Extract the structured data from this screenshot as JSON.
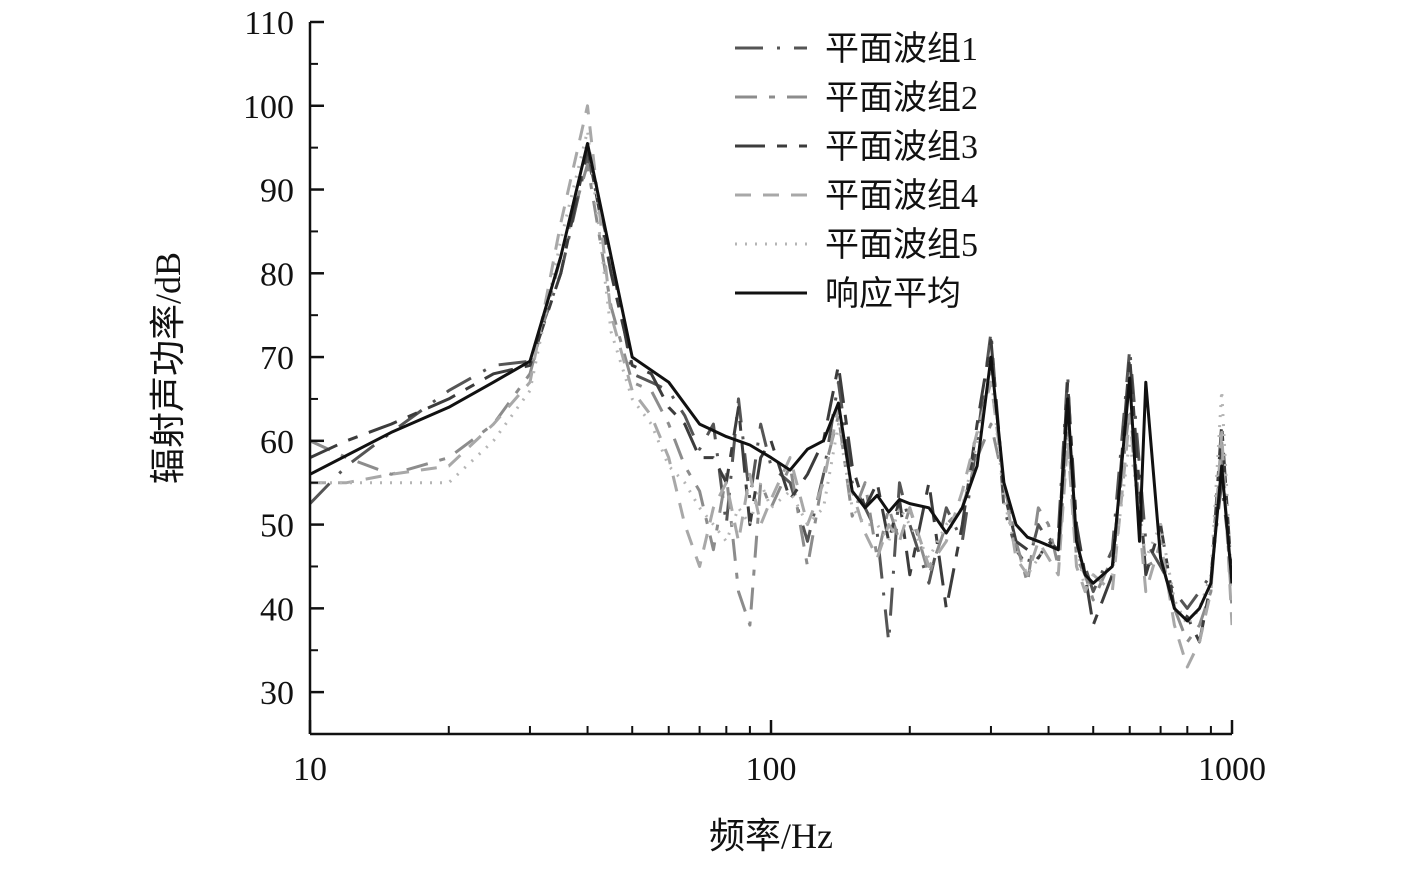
{
  "chart_data": {
    "type": "line",
    "x_scale": "log",
    "xlabel": "频率/Hz",
    "ylabel": "辐射声功率/dB",
    "xlim": [
      10,
      1000
    ],
    "ylim": [
      25,
      110
    ],
    "x_ticks": [
      "10",
      "100",
      "1000"
    ],
    "y_ticks": [
      "30",
      "40",
      "50",
      "60",
      "70",
      "80",
      "90",
      "100",
      "110"
    ],
    "grid": false,
    "legend_position": "top-right",
    "series": [
      {
        "name": "平面波组1",
        "color": "#555555",
        "dash": "longdash-dot",
        "x": [
          10,
          12,
          15,
          20,
          25,
          30,
          35,
          40,
          45,
          50,
          55,
          60,
          65,
          70,
          75,
          80,
          85,
          90,
          95,
          100,
          110,
          120,
          130,
          140,
          150,
          160,
          170,
          180,
          190,
          200,
          220,
          240,
          260,
          280,
          300,
          320,
          340,
          360,
          380,
          400,
          420,
          440,
          460,
          480,
          500,
          550,
          600,
          650,
          700,
          750,
          800,
          850,
          900,
          950,
          1000
        ],
        "y": [
          52.5,
          57,
          61,
          66,
          69,
          69.5,
          80,
          94,
          82,
          68,
          67,
          66,
          63,
          59,
          62,
          50,
          65,
          53,
          62,
          57,
          55,
          48,
          56,
          67,
          55,
          52,
          49,
          36,
          55,
          50,
          43,
          52,
          48,
          60,
          73,
          52,
          47,
          45,
          50,
          48,
          49,
          68,
          47,
          45,
          42,
          47,
          71,
          48,
          45,
          42,
          40,
          42,
          44,
          55,
          44
        ]
      },
      {
        "name": "平面波组2",
        "color": "#8c8c8c",
        "dash": "dash-dot",
        "x": [
          10,
          12,
          15,
          20,
          25,
          30,
          35,
          40,
          45,
          50,
          55,
          60,
          65,
          70,
          75,
          80,
          85,
          90,
          95,
          100,
          110,
          120,
          130,
          140,
          150,
          160,
          170,
          180,
          190,
          200,
          220,
          240,
          260,
          280,
          300,
          320,
          340,
          360,
          380,
          400,
          420,
          440,
          460,
          480,
          500,
          550,
          600,
          650,
          700,
          750,
          800,
          850,
          900,
          950,
          1000
        ],
        "y": [
          60,
          58,
          56,
          58,
          62,
          68,
          82,
          93,
          76,
          67,
          66,
          62,
          57,
          54,
          47,
          56,
          42,
          38,
          55,
          52,
          57,
          45,
          56,
          63,
          51,
          55,
          46,
          52,
          48,
          52,
          44,
          50,
          52,
          58,
          62,
          55,
          48,
          43,
          52,
          50,
          45,
          62,
          46,
          44,
          41,
          46,
          64,
          45,
          46,
          40,
          36,
          38,
          42,
          60,
          40
        ]
      },
      {
        "name": "平面波组3",
        "color": "#3c3c3c",
        "dash": "longdash-shortdash",
        "x": [
          10,
          12,
          15,
          20,
          25,
          30,
          35,
          40,
          45,
          50,
          55,
          60,
          65,
          70,
          75,
          80,
          85,
          90,
          95,
          100,
          110,
          120,
          130,
          140,
          150,
          160,
          170,
          180,
          190,
          200,
          220,
          240,
          260,
          280,
          300,
          320,
          340,
          360,
          380,
          400,
          420,
          440,
          460,
          480,
          500,
          550,
          600,
          650,
          700,
          750,
          800,
          850,
          900,
          950,
          1000
        ],
        "y": [
          58,
          60,
          62,
          65,
          68,
          69,
          80,
          95,
          80,
          69,
          68,
          64,
          62,
          58,
          58,
          55,
          64,
          50,
          58,
          60,
          53,
          56,
          60,
          69,
          57,
          52,
          55,
          48,
          53,
          44,
          55,
          40,
          50,
          62,
          72,
          54,
          48,
          47,
          46,
          48,
          47,
          67,
          50,
          44,
          38,
          44,
          70,
          44,
          50,
          40,
          39,
          36,
          43,
          62,
          43
        ]
      },
      {
        "name": "平面波组4",
        "color": "#a8a8a8",
        "dash": "dashed",
        "x": [
          10,
          12,
          15,
          20,
          25,
          30,
          35,
          40,
          45,
          50,
          55,
          60,
          65,
          70,
          75,
          80,
          85,
          90,
          95,
          100,
          110,
          120,
          130,
          140,
          150,
          160,
          170,
          180,
          190,
          200,
          220,
          240,
          260,
          280,
          300,
          320,
          340,
          360,
          380,
          400,
          420,
          440,
          460,
          480,
          500,
          550,
          600,
          650,
          700,
          750,
          800,
          850,
          900,
          950,
          1000
        ],
        "y": [
          55,
          55,
          56,
          57,
          62,
          67,
          86,
          100,
          75,
          66,
          63,
          58,
          50,
          45,
          52,
          55,
          48,
          56,
          50,
          53,
          58,
          50,
          55,
          64,
          54,
          49,
          46,
          50,
          48,
          52,
          45,
          48,
          54,
          61,
          67,
          55,
          46,
          44,
          48,
          46,
          44,
          60,
          45,
          42,
          44,
          42,
          63,
          42,
          48,
          38,
          33,
          36,
          42,
          61,
          38
        ]
      },
      {
        "name": "平面波组5",
        "color": "#b5b5b5",
        "dash": "dotted",
        "x": [
          10,
          12,
          15,
          20,
          25,
          30,
          35,
          40,
          45,
          50,
          55,
          60,
          65,
          70,
          75,
          80,
          85,
          90,
          95,
          100,
          110,
          120,
          130,
          140,
          150,
          160,
          170,
          180,
          190,
          200,
          220,
          240,
          260,
          280,
          300,
          320,
          340,
          360,
          380,
          400,
          420,
          440,
          460,
          480,
          500,
          550,
          600,
          650,
          700,
          750,
          800,
          850,
          900,
          950,
          1000
        ],
        "y": [
          55,
          55,
          55,
          55,
          60,
          66,
          84,
          97,
          73,
          65,
          62,
          57,
          55,
          52,
          50,
          48,
          52,
          50,
          55,
          52,
          54,
          50,
          52,
          62,
          52,
          50,
          50,
          48,
          52,
          50,
          46,
          50,
          52,
          60,
          68,
          53,
          47,
          44,
          46,
          48,
          47,
          62,
          48,
          42,
          44,
          44,
          60,
          46,
          50,
          41,
          38,
          40,
          44,
          66,
          42
        ]
      },
      {
        "name": "响应平均",
        "color": "#111111",
        "dash": "solid",
        "x": [
          10,
          15,
          20,
          25,
          30,
          35,
          40,
          45,
          50,
          60,
          70,
          80,
          90,
          100,
          110,
          120,
          130,
          140,
          150,
          160,
          170,
          180,
          190,
          200,
          220,
          240,
          260,
          280,
          300,
          320,
          340,
          360,
          380,
          400,
          420,
          440,
          460,
          480,
          500,
          550,
          600,
          630,
          650,
          700,
          750,
          800,
          850,
          900,
          950,
          1000
        ],
        "y": [
          56,
          61,
          64,
          67,
          69.5,
          82,
          95.5,
          82,
          70,
          67,
          62,
          60.5,
          59.5,
          58,
          56.5,
          59,
          60,
          64.5,
          54,
          52,
          53.5,
          51.5,
          53,
          52.5,
          52,
          49,
          52,
          57,
          70,
          55,
          50,
          48.5,
          48,
          47.5,
          47,
          65,
          48,
          44,
          43,
          45,
          67.5,
          48,
          67,
          46,
          40,
          38.5,
          40,
          43,
          57,
          43
        ]
      }
    ]
  }
}
